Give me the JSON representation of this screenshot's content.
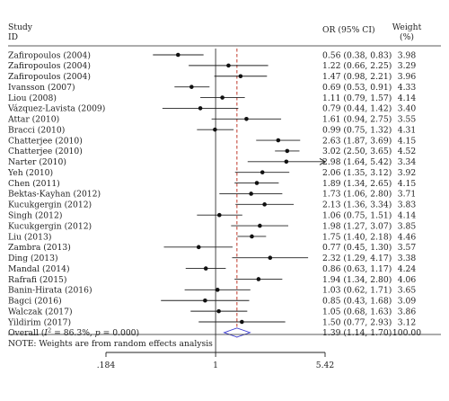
{
  "chart_data": {
    "type": "forest",
    "header": {
      "study_col": [
        "Study",
        "ID"
      ],
      "or_col": "OR (95% CI)",
      "weight_col": [
        "Weight",
        "(%)"
      ]
    },
    "x_scale": "log",
    "x_ticks": [
      {
        "value": 0.184,
        "label": ".184"
      },
      {
        "value": 1,
        "label": "1"
      },
      {
        "value": 5.42,
        "label": "5.42"
      }
    ],
    "xlim": [
      0.184,
      5.42
    ],
    "null_line": 1,
    "pooled_line": 1.39,
    "rows": [
      {
        "study": "Zafiropoulos (2004)",
        "or": 0.56,
        "lo": 0.38,
        "hi": 0.83,
        "ci_text": "0.56 (0.38, 0.83)",
        "weight": "3.98"
      },
      {
        "study": "Zafiropoulos (2004)",
        "or": 1.22,
        "lo": 0.66,
        "hi": 2.25,
        "ci_text": "1.22 (0.66, 2.25)",
        "weight": "3.29"
      },
      {
        "study": "Zafiropoulos (2004)",
        "or": 1.47,
        "lo": 0.98,
        "hi": 2.21,
        "ci_text": "1.47 (0.98, 2.21)",
        "weight": "3.96"
      },
      {
        "study": "Ivansson (2007)",
        "or": 0.69,
        "lo": 0.53,
        "hi": 0.91,
        "ci_text": "0.69 (0.53, 0.91)",
        "weight": "4.33"
      },
      {
        "study": "Liou (2008)",
        "or": 1.11,
        "lo": 0.79,
        "hi": 1.57,
        "ci_text": "1.11 (0.79, 1.57)",
        "weight": "4.14"
      },
      {
        "study": "Vázquez-Lavista (2009)",
        "or": 0.79,
        "lo": 0.44,
        "hi": 1.42,
        "ci_text": "0.79 (0.44, 1.42)",
        "weight": "3.40"
      },
      {
        "study": "Attar (2010)",
        "or": 1.61,
        "lo": 0.94,
        "hi": 2.75,
        "ci_text": "1.61 (0.94, 2.75)",
        "weight": "3.55"
      },
      {
        "study": "Bracci (2010)",
        "or": 0.99,
        "lo": 0.75,
        "hi": 1.32,
        "ci_text": "0.99 (0.75, 1.32)",
        "weight": "4.31"
      },
      {
        "study": "Chatterjee (2010)",
        "or": 2.63,
        "lo": 1.87,
        "hi": 3.69,
        "ci_text": "2.63 (1.87, 3.69)",
        "weight": "4.15"
      },
      {
        "study": "Chatterjee (2010)",
        "or": 3.02,
        "lo": 2.5,
        "hi": 3.65,
        "ci_text": "3.02 (2.50, 3.65)",
        "weight": "4.52"
      },
      {
        "study": "Narter (2010)",
        "or": 2.98,
        "lo": 1.64,
        "hi": 5.42,
        "ci_text": "2.98 (1.64, 5.42)",
        "weight": "3.34",
        "arrow": true
      },
      {
        "study": "Yeh (2010)",
        "or": 2.06,
        "lo": 1.35,
        "hi": 3.12,
        "ci_text": "2.06 (1.35, 3.12)",
        "weight": "3.92"
      },
      {
        "study": "Chen (2011)",
        "or": 1.89,
        "lo": 1.34,
        "hi": 2.65,
        "ci_text": "1.89 (1.34, 2.65)",
        "weight": "4.15"
      },
      {
        "study": "Bektas-Kayhan (2012)",
        "or": 1.73,
        "lo": 1.06,
        "hi": 2.8,
        "ci_text": "1.73 (1.06, 2.80)",
        "weight": "3.71"
      },
      {
        "study": "Kucukgergin (2012)",
        "or": 2.13,
        "lo": 1.36,
        "hi": 3.34,
        "ci_text": "2.13 (1.36, 3.34)",
        "weight": "3.83"
      },
      {
        "study": "Singh (2012)",
        "or": 1.06,
        "lo": 0.75,
        "hi": 1.51,
        "ci_text": "1.06 (0.75, 1.51)",
        "weight": "4.14"
      },
      {
        "study": "Kucukgergin (2012)",
        "or": 1.98,
        "lo": 1.27,
        "hi": 3.07,
        "ci_text": "1.98 (1.27, 3.07)",
        "weight": "3.85"
      },
      {
        "study": "Liu (2013)",
        "or": 1.75,
        "lo": 1.4,
        "hi": 2.18,
        "ci_text": "1.75 (1.40, 2.18)",
        "weight": "4.46"
      },
      {
        "study": "Zambra (2013)",
        "or": 0.77,
        "lo": 0.45,
        "hi": 1.3,
        "ci_text": "0.77 (0.45, 1.30)",
        "weight": "3.57"
      },
      {
        "study": "Ding (2013)",
        "or": 2.32,
        "lo": 1.29,
        "hi": 4.17,
        "ci_text": "2.32 (1.29, 4.17)",
        "weight": "3.38"
      },
      {
        "study": "Mandal (2014)",
        "or": 0.86,
        "lo": 0.63,
        "hi": 1.17,
        "ci_text": "0.86 (0.63, 1.17)",
        "weight": "4.24"
      },
      {
        "study": "Rafrafi (2015)",
        "or": 1.94,
        "lo": 1.34,
        "hi": 2.8,
        "ci_text": "1.94 (1.34, 2.80)",
        "weight": "4.06"
      },
      {
        "study": "Banin-Hirata (2016)",
        "or": 1.03,
        "lo": 0.62,
        "hi": 1.71,
        "ci_text": "1.03 (0.62, 1.71)",
        "weight": "3.65"
      },
      {
        "study": "Bagci (2016)",
        "or": 0.85,
        "lo": 0.43,
        "hi": 1.68,
        "ci_text": "0.85 (0.43, 1.68)",
        "weight": "3.09"
      },
      {
        "study": "Walczak (2017)",
        "or": 1.05,
        "lo": 0.68,
        "hi": 1.63,
        "ci_text": "1.05 (0.68, 1.63)",
        "weight": "3.86"
      },
      {
        "study": "Yildirim (2017)",
        "or": 1.5,
        "lo": 0.77,
        "hi": 2.93,
        "ci_text": "1.50 (0.77, 2.93)",
        "weight": "3.12"
      }
    ],
    "overall": {
      "label_prefix": "Overall (",
      "i2_symbol": "I",
      "i2_sup": "2",
      "label_mid": " = 86.3%, ",
      "p_symbol": "p",
      "label_suffix": " = 0.000)",
      "or": 1.39,
      "lo": 1.14,
      "hi": 1.7,
      "ci_text": "1.39 (1.14, 1.70)",
      "weight": "100.00"
    },
    "note": "NOTE: Weights are from random effects analysis",
    "colors": {
      "line": "#222222",
      "marker": "#111111",
      "box": "#8c8c8c",
      "pooled_line": "#c0392b",
      "diamond": "#3b3bd1"
    }
  }
}
